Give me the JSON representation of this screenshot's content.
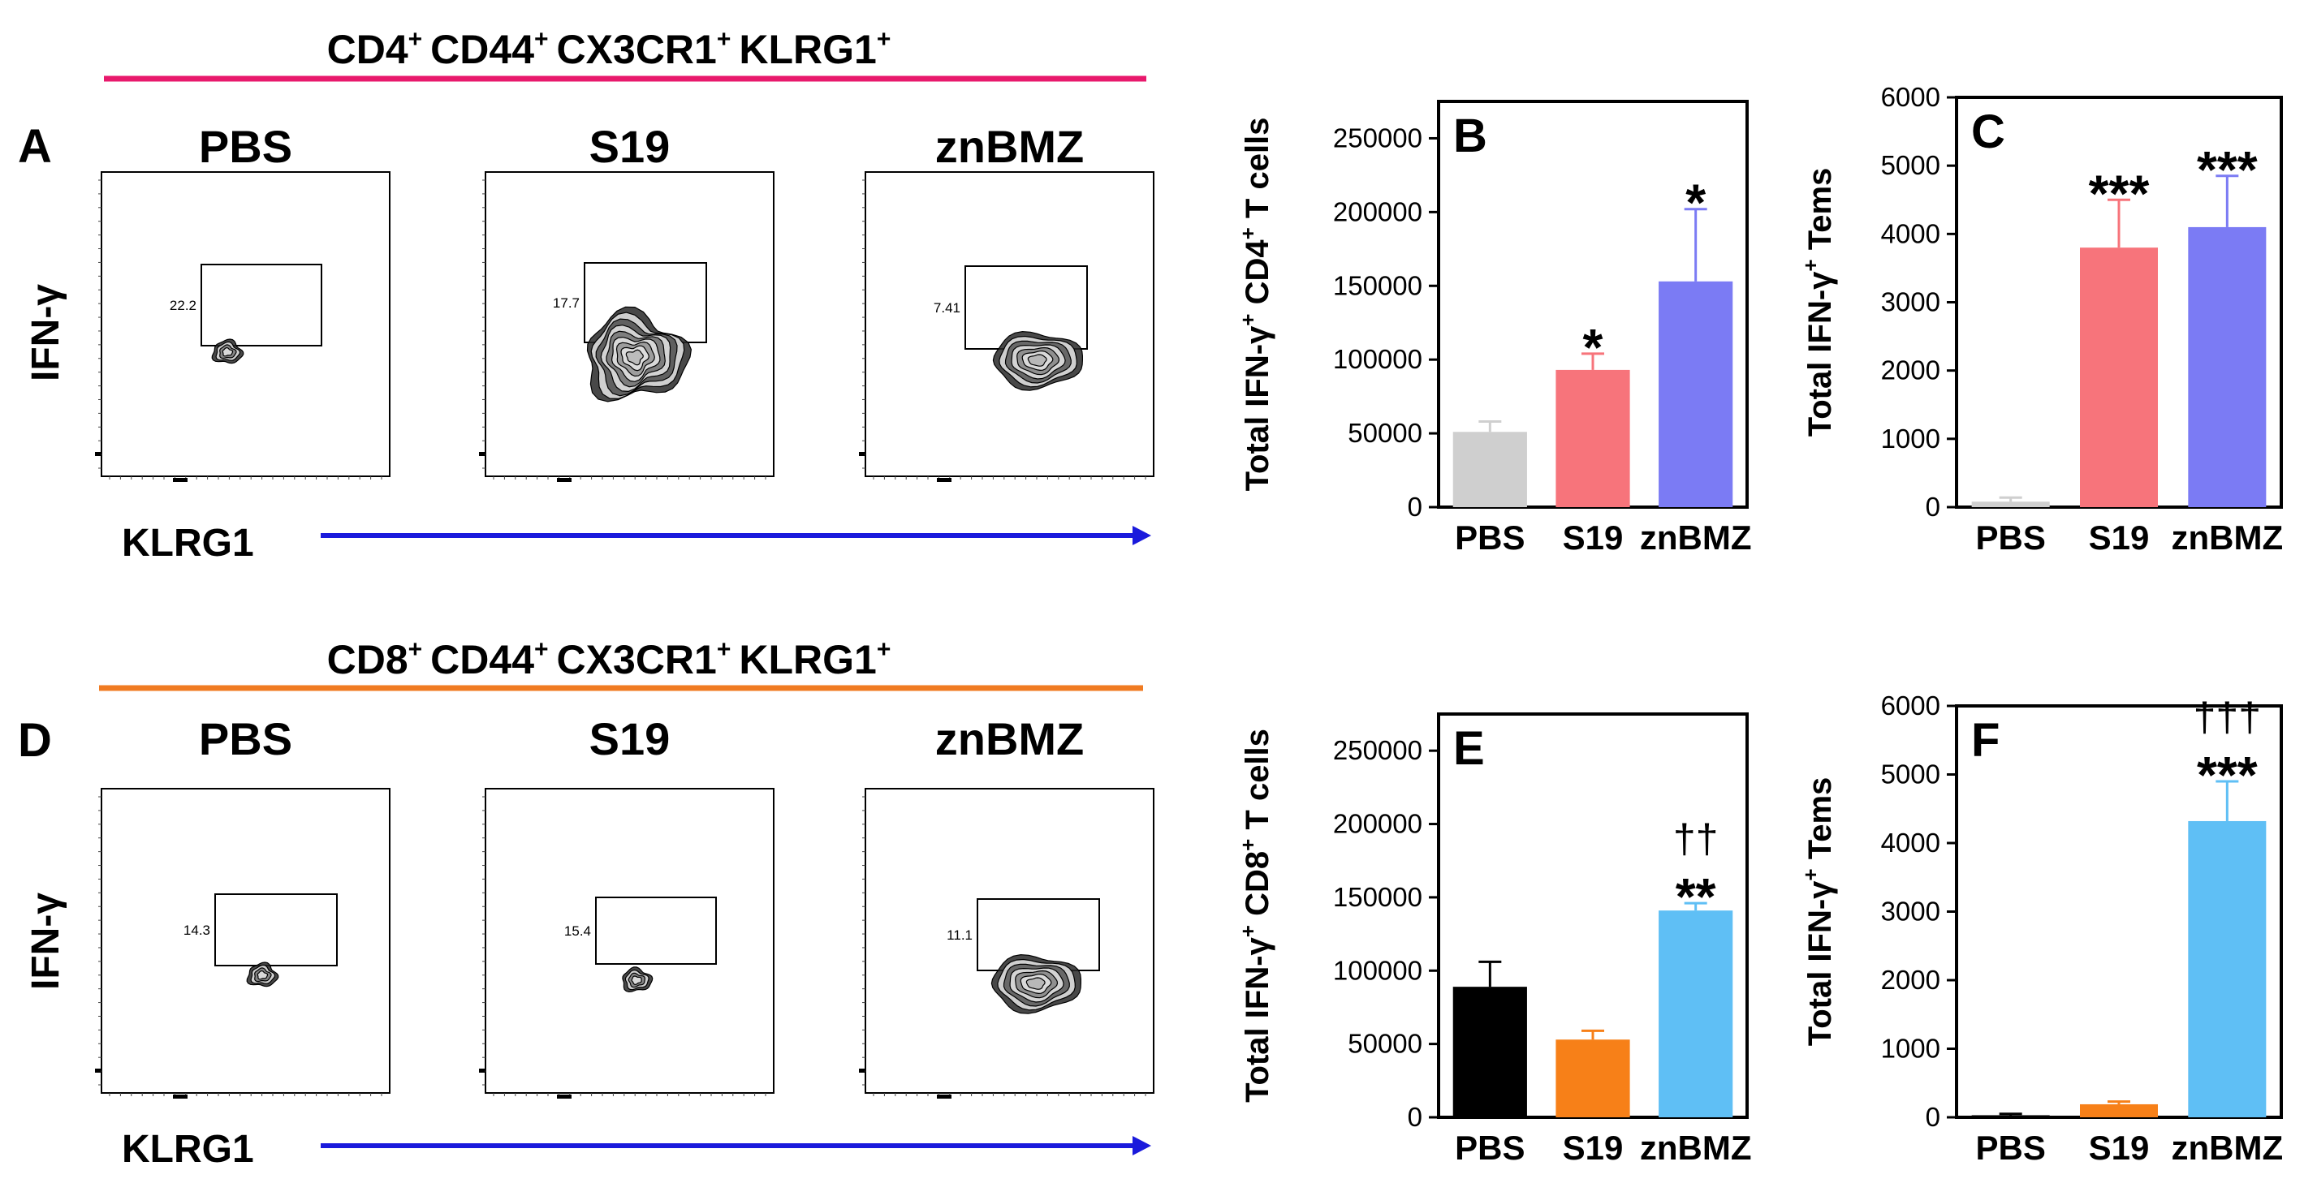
{
  "rows": [
    {
      "header_main": "CD4",
      "header_sup": "+",
      "header_markers": [
        "CD44",
        "CX3CR1",
        "KLRG1"
      ],
      "header_color": "#e8196c",
      "panel_label": "A",
      "y_axis_label": "IFN-γ",
      "x_axis_label": "KLRG1",
      "arrow_color": "#1a1adc",
      "flow_plots": [
        {
          "sample": "PBS",
          "gate_value": "22.2",
          "contour_shape": "small"
        },
        {
          "sample": "S19",
          "gate_value": "17.7",
          "contour_shape": "large"
        },
        {
          "sample": "znBMZ",
          "gate_value": "7.41",
          "contour_shape": "medium"
        }
      ]
    },
    {
      "header_main": "CD8",
      "header_sup": "+",
      "header_markers": [
        "CD44",
        "CX3CR1",
        "KLRG1"
      ],
      "header_color": "#f07b22",
      "panel_label": "D",
      "y_axis_label": "IFN-γ",
      "x_axis_label": "KLRG1",
      "arrow_color": "#1a1adc",
      "flow_plots": [
        {
          "sample": "PBS",
          "gate_value": "14.3",
          "contour_shape": "small"
        },
        {
          "sample": "S19",
          "gate_value": "15.4",
          "contour_shape": "small"
        },
        {
          "sample": "znBMZ",
          "gate_value": "11.1",
          "contour_shape": "medium"
        }
      ]
    }
  ],
  "chart_data": [
    {
      "panel": "B",
      "type": "bar",
      "ylabel_parts": [
        "Total IFN-γ",
        "+",
        " CD4",
        "+",
        " T cells"
      ],
      "categories": [
        "PBS",
        "S19",
        "znBMZ"
      ],
      "values": [
        51000,
        93000,
        153000
      ],
      "errors": [
        7000,
        11000,
        49000
      ],
      "colors": [
        "#cfcfcf",
        "#f7747b",
        "#7b7bf4"
      ],
      "annotations": [
        [],
        [
          "*"
        ],
        [
          "*"
        ]
      ],
      "ylim": [
        0,
        275000
      ],
      "yticks": [
        0,
        50000,
        100000,
        150000,
        200000,
        250000
      ]
    },
    {
      "panel": "C",
      "type": "bar",
      "ylabel_parts": [
        "Total IFN-γ",
        "+",
        " Tems"
      ],
      "categories": [
        "PBS",
        "S19",
        "znBMZ"
      ],
      "values": [
        80,
        3800,
        4100
      ],
      "errors": [
        60,
        700,
        750
      ],
      "colors": [
        "#cfcfcf",
        "#f7747b",
        "#7b7bf4"
      ],
      "annotations": [
        [],
        [
          "***"
        ],
        [
          "***"
        ]
      ],
      "ylim": [
        0,
        6000
      ],
      "yticks": [
        0,
        1000,
        2000,
        3000,
        4000,
        5000,
        6000
      ]
    },
    {
      "panel": "E",
      "type": "bar",
      "ylabel_parts": [
        "Total IFN-γ",
        "+",
        " CD8",
        "+",
        " T cells"
      ],
      "categories": [
        "PBS",
        "S19",
        "znBMZ"
      ],
      "values": [
        89000,
        53000,
        141000
      ],
      "errors": [
        17000,
        6000,
        5000
      ],
      "colors": [
        "#000000",
        "#f78018",
        "#5fbff5"
      ],
      "annotations": [
        [],
        [],
        [
          "††",
          "**"
        ]
      ],
      "ylim": [
        0,
        275000
      ],
      "yticks": [
        0,
        50000,
        100000,
        150000,
        200000,
        250000
      ]
    },
    {
      "panel": "F",
      "type": "bar",
      "ylabel_parts": [
        "Total IFN-γ",
        "+",
        " Tems"
      ],
      "categories": [
        "PBS",
        "S19",
        "znBMZ"
      ],
      "values": [
        30,
        190,
        4320
      ],
      "errors": [
        20,
        40,
        580
      ],
      "colors": [
        "#000000",
        "#f78018",
        "#5fbff5"
      ],
      "annotations": [
        [],
        [],
        [
          "†††",
          "***"
        ]
      ],
      "ylim": [
        0,
        6000
      ],
      "yticks": [
        0,
        1000,
        2000,
        3000,
        4000,
        5000,
        6000
      ]
    }
  ]
}
